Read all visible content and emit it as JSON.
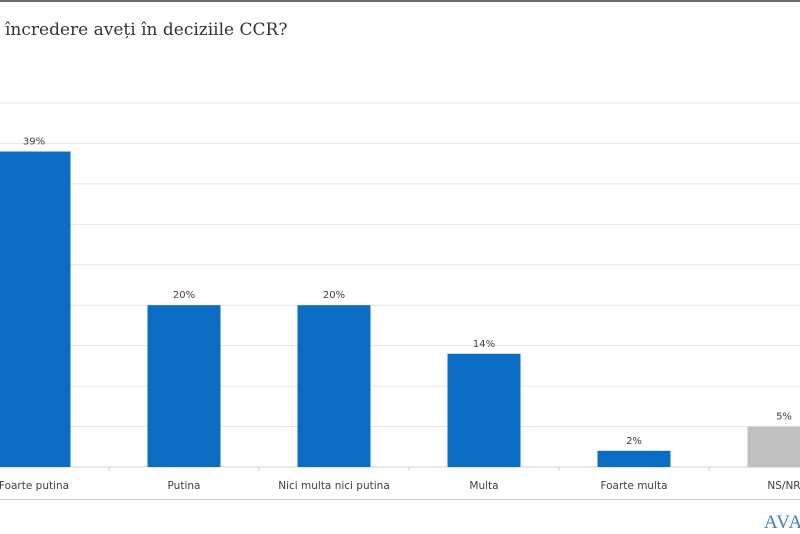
{
  "title": "încredere aveți în deciziile CCR?",
  "logo_text": "AVAN",
  "chart_data": {
    "type": "bar",
    "categories": [
      "Foarte putina",
      "Putina",
      "Nici multa nici putina",
      "Multa",
      "Foarte multa",
      "NS/NR"
    ],
    "values": [
      39,
      20,
      20,
      14,
      2,
      5
    ],
    "data_labels": [
      "39%",
      "20%",
      "20%",
      "14%",
      "2%",
      "5%"
    ],
    "colors": [
      "#0a6cc2",
      "#0a6cc2",
      "#0a6cc2",
      "#0a6cc2",
      "#0a6cc2",
      "#bfbfbf"
    ],
    "ylim": [
      0,
      45
    ],
    "grid": true,
    "gridline_step": 5,
    "legend": "none"
  }
}
